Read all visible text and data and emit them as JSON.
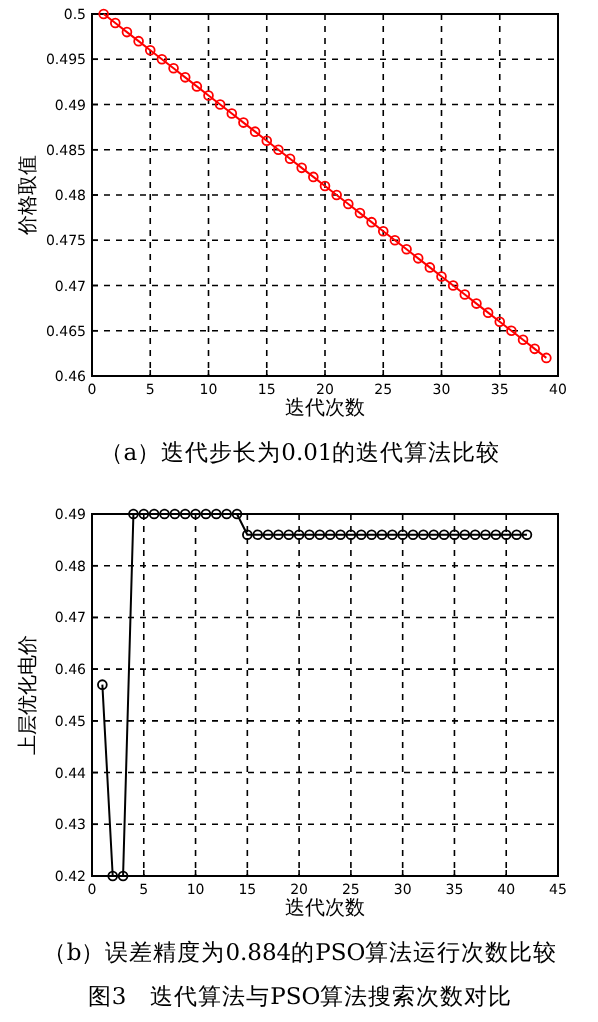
{
  "chart_data": [
    {
      "type": "line",
      "title": "（a）迭代步长为0.01的迭代算法比较",
      "xlabel": "迭代次数",
      "ylabel": "价格取值",
      "xlim": [
        0,
        40
      ],
      "xticks": [
        0,
        5,
        10,
        15,
        20,
        25,
        30,
        35,
        40
      ],
      "ylim": [
        0.46,
        0.5
      ],
      "yticks": [
        0.46,
        0.465,
        0.47,
        0.475,
        0.48,
        0.485,
        0.49,
        0.495,
        0.5
      ],
      "grid": true,
      "marker": "circle",
      "line_style": "solid",
      "x": [
        1,
        2,
        3,
        4,
        5,
        6,
        7,
        8,
        9,
        10,
        11,
        12,
        13,
        14,
        15,
        16,
        17,
        18,
        19,
        20,
        21,
        22,
        23,
        24,
        25,
        26,
        27,
        28,
        29,
        30,
        31,
        32,
        33,
        34,
        35,
        36,
        37,
        38,
        39
      ],
      "series": [
        {
          "color": "#ff0000",
          "values": [
            0.5,
            0.499,
            0.498,
            0.497,
            0.496,
            0.495,
            0.494,
            0.493,
            0.492,
            0.491,
            0.49,
            0.489,
            0.488,
            0.487,
            0.486,
            0.485,
            0.484,
            0.483,
            0.482,
            0.481,
            0.48,
            0.479,
            0.478,
            0.477,
            0.476,
            0.475,
            0.474,
            0.473,
            0.472,
            0.471,
            0.47,
            0.469,
            0.468,
            0.467,
            0.466,
            0.465,
            0.464,
            0.463,
            0.462
          ]
        }
      ]
    },
    {
      "type": "line",
      "title": "（b）误差精度为0.884的PSO算法运行次数比较",
      "xlabel": "迭代次数",
      "ylabel": "上层优化电价",
      "annotations": [
        "图3　迭代算法与PSO算法搜索次数对比"
      ],
      "xlim": [
        0,
        45
      ],
      "xticks": [
        0,
        5,
        10,
        15,
        20,
        25,
        30,
        35,
        40,
        45
      ],
      "ylim": [
        0.42,
        0.49
      ],
      "yticks": [
        0.42,
        0.43,
        0.44,
        0.45,
        0.46,
        0.47,
        0.48,
        0.49
      ],
      "grid": true,
      "marker": "circle",
      "line_style": "solid",
      "x": [
        1,
        2,
        3,
        4,
        5,
        6,
        7,
        8,
        9,
        10,
        11,
        12,
        13,
        14,
        15,
        16,
        17,
        18,
        19,
        20,
        21,
        22,
        23,
        24,
        25,
        26,
        27,
        28,
        29,
        30,
        31,
        32,
        33,
        34,
        35,
        36,
        37,
        38,
        39,
        40,
        41,
        42
      ],
      "series": [
        {
          "color": "#000000",
          "values": [
            0.457,
            0.42,
            0.42,
            0.49,
            0.49,
            0.49,
            0.49,
            0.49,
            0.49,
            0.49,
            0.49,
            0.49,
            0.49,
            0.49,
            0.486,
            0.486,
            0.486,
            0.486,
            0.486,
            0.486,
            0.486,
            0.486,
            0.486,
            0.486,
            0.486,
            0.486,
            0.486,
            0.486,
            0.486,
            0.486,
            0.486,
            0.486,
            0.486,
            0.486,
            0.486,
            0.486,
            0.486,
            0.486,
            0.486,
            0.486,
            0.486,
            0.486
          ]
        }
      ]
    }
  ]
}
